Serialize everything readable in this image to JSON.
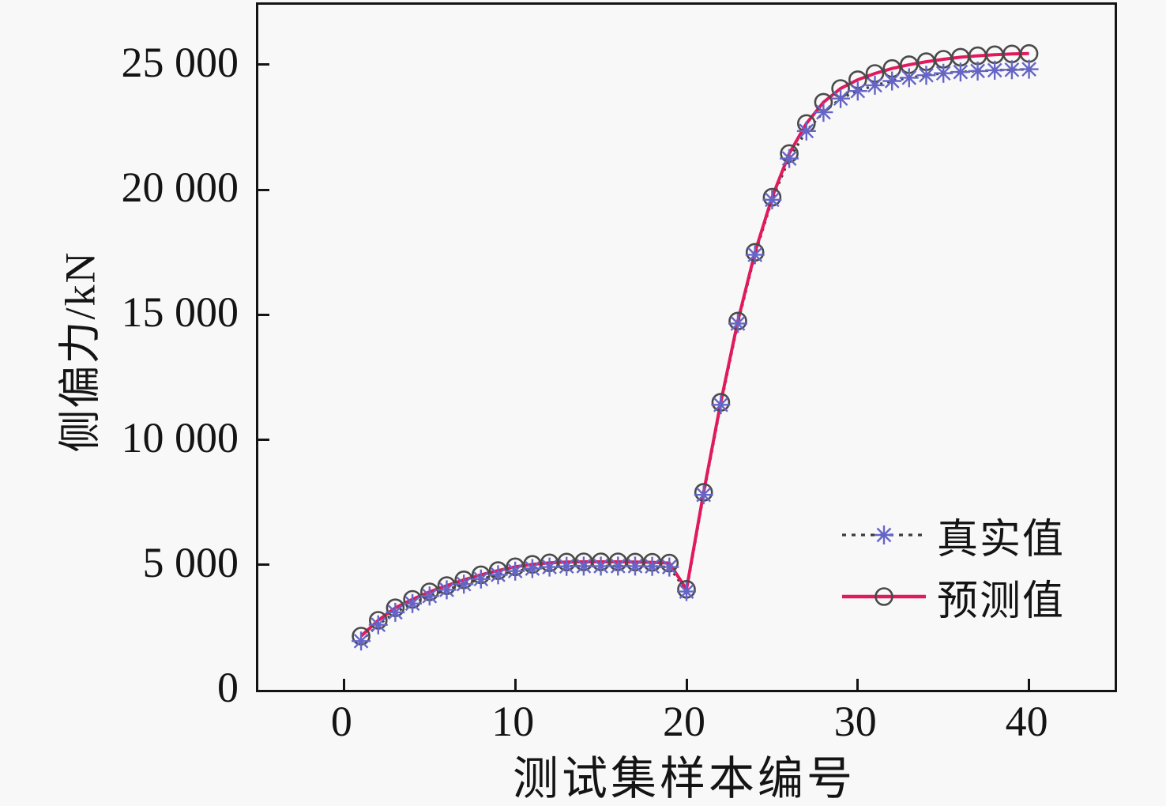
{
  "figure": {
    "background": "#f8f8f8",
    "axis_color": "#141414"
  },
  "chart_data": {
    "type": "line",
    "title": "",
    "xlabel": "测试集样本编号",
    "ylabel": "侧偏力/kN",
    "xlim": [
      -5,
      45
    ],
    "ylim": [
      0,
      27400
    ],
    "x_ticks": [
      0,
      10,
      20,
      30,
      40
    ],
    "y_ticks": [
      0,
      5000,
      10000,
      15000,
      20000,
      25000
    ],
    "y_tick_labels": [
      "0",
      "5 000",
      "10 000",
      "15 000",
      "20 000",
      "25 000"
    ],
    "grid": false,
    "legend_position": "inside-lower-right",
    "x": [
      1,
      2,
      3,
      4,
      5,
      6,
      7,
      8,
      9,
      10,
      11,
      12,
      13,
      14,
      15,
      16,
      17,
      18,
      19,
      20,
      21,
      22,
      23,
      24,
      25,
      26,
      27,
      28,
      29,
      30,
      31,
      32,
      33,
      34,
      35,
      36,
      37,
      38,
      39,
      40
    ],
    "series": [
      {
        "name": "真实值",
        "marker": "asterisk",
        "marker_color": "#6565c8",
        "line_style": "dotted",
        "line_color": "#3c3c3c",
        "values": [
          1950,
          2600,
          3100,
          3450,
          3750,
          4000,
          4230,
          4430,
          4600,
          4750,
          4850,
          4910,
          4940,
          4950,
          4950,
          4950,
          4950,
          4940,
          4910,
          3930,
          7800,
          11400,
          14650,
          17400,
          19600,
          21250,
          22350,
          23100,
          23650,
          23950,
          24180,
          24350,
          24480,
          24580,
          24660,
          24710,
          24750,
          24780,
          24800,
          24820
        ]
      },
      {
        "name": "预测值",
        "marker": "circle",
        "marker_color": "#4a4a4a",
        "line_style": "solid",
        "line_color": "#e01a5c",
        "values": [
          2150,
          2780,
          3280,
          3620,
          3920,
          4170,
          4400,
          4600,
          4770,
          4920,
          5020,
          5080,
          5110,
          5120,
          5120,
          5120,
          5110,
          5100,
          5070,
          4020,
          7900,
          11500,
          14750,
          17500,
          19700,
          21450,
          22650,
          23500,
          24050,
          24400,
          24650,
          24850,
          25000,
          25120,
          25220,
          25300,
          25360,
          25400,
          25430,
          25450
        ]
      }
    ]
  }
}
